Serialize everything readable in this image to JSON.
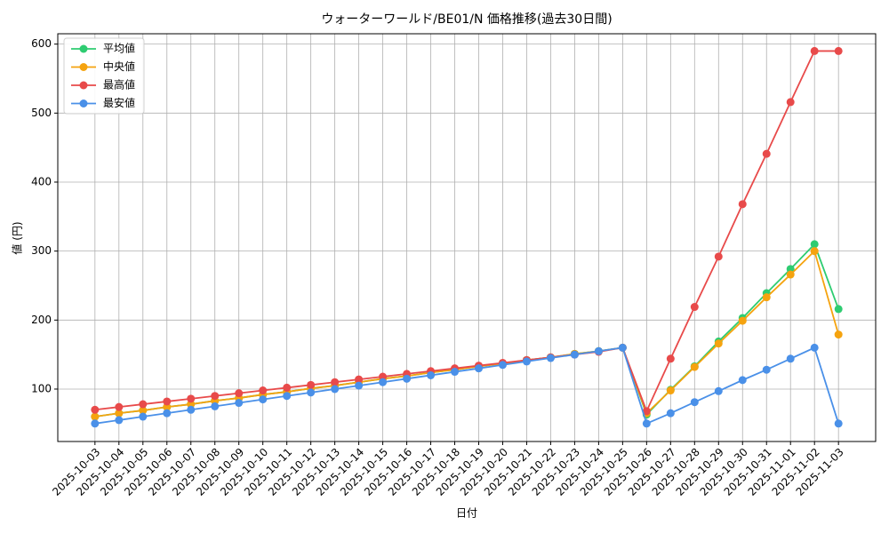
{
  "chart_data": {
    "type": "line",
    "title": "ウォーターワールド/BE01/N 価格推移(過去30日間)",
    "x_label": "日付",
    "y_label": "値 (円)",
    "categories": [
      "2025-10-03",
      "2025-10-04",
      "2025-10-05",
      "2025-10-06",
      "2025-10-07",
      "2025-10-08",
      "2025-10-09",
      "2025-10-10",
      "2025-10-11",
      "2025-10-12",
      "2025-10-13",
      "2025-10-14",
      "2025-10-15",
      "2025-10-16",
      "2025-10-17",
      "2025-10-18",
      "2025-10-19",
      "2025-10-20",
      "2025-10-21",
      "2025-10-22",
      "2025-10-23",
      "2025-10-24",
      "2025-10-25",
      "2025-10-26",
      "2025-10-27",
      "2025-10-28",
      "2025-10-29",
      "2025-10-30",
      "2025-10-31",
      "2025-11-01",
      "2025-11-02",
      "2025-11-03"
    ],
    "series": [
      {
        "name": "平均値",
        "color": "#2ecc71",
        "values": [
          60,
          65,
          69,
          74,
          78,
          83,
          87,
          92,
          96,
          101,
          105,
          110,
          115,
          119,
          124,
          128,
          133,
          137,
          142,
          146,
          151,
          155,
          160,
          63,
          99,
          133,
          169,
          203,
          239,
          274,
          310,
          216
        ]
      },
      {
        "name": "中央値",
        "color": "#f5a30f",
        "values": [
          60,
          65,
          69,
          74,
          78,
          83,
          87,
          92,
          96,
          101,
          105,
          110,
          115,
          119,
          124,
          128,
          133,
          137,
          142,
          146,
          151,
          155,
          160,
          65,
          98,
          132,
          166,
          199,
          233,
          266,
          300,
          179
        ]
      },
      {
        "name": "最高値",
        "color": "#e84a4a",
        "values": [
          70,
          74,
          78,
          82,
          86,
          90,
          94,
          98,
          102,
          106,
          110,
          114,
          118,
          122,
          126,
          130,
          134,
          138,
          142,
          146,
          150,
          154,
          160,
          68,
          144,
          219,
          292,
          368,
          441,
          516,
          590,
          590
        ]
      },
      {
        "name": "最安値",
        "color": "#4a90e8",
        "values": [
          50,
          55,
          60,
          65,
          70,
          75,
          80,
          85,
          90,
          95,
          100,
          105,
          110,
          115,
          120,
          125,
          130,
          135,
          140,
          145,
          150,
          155,
          160,
          50,
          65,
          81,
          97,
          113,
          128,
          144,
          160,
          50
        ]
      }
    ],
    "ylim": [
      24,
      615
    ],
    "yticks": [
      100,
      200,
      300,
      400,
      500,
      600
    ],
    "grid": true,
    "legend": "upper left"
  }
}
